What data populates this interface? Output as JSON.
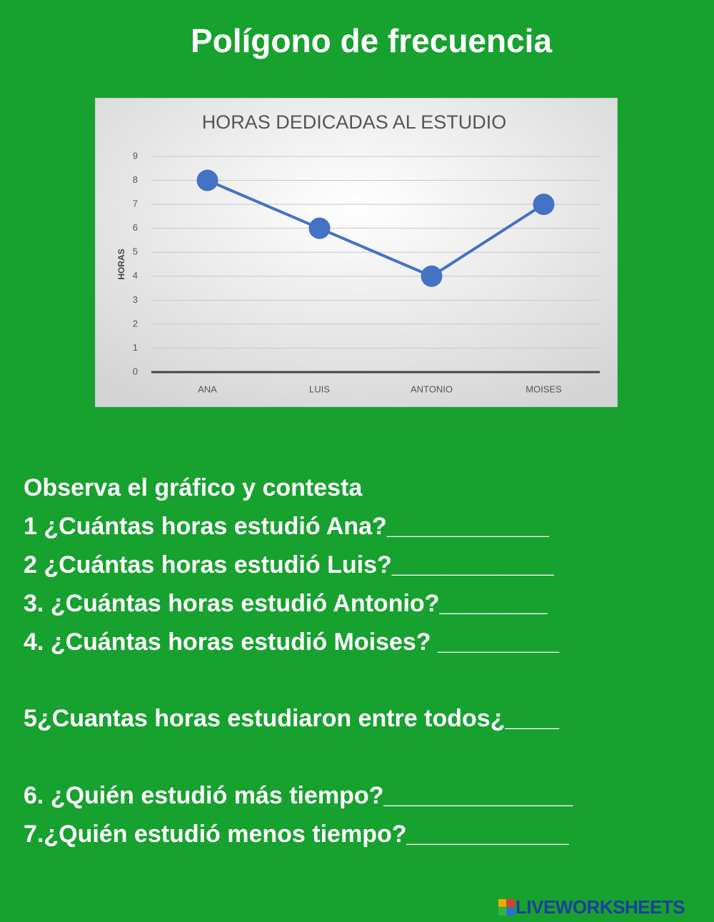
{
  "title": "Polígono de frecuencia",
  "chart_data": {
    "type": "line",
    "title": "HORAS DEDICADAS AL ESTUDIO",
    "y_label": "HORAS",
    "categories": [
      "ANA",
      "LUIS",
      "ANTONIO",
      "MOISES"
    ],
    "values": [
      8,
      6,
      4,
      7
    ],
    "color": "#4472c4",
    "ylim": [
      0,
      9
    ],
    "yticks": [
      0,
      1,
      2,
      3,
      4,
      5,
      6,
      7,
      8,
      9
    ],
    "grid": true
  },
  "questions": [
    "Observa el gráfico y contesta",
    "1 ¿Cuántas horas estudió Ana?____________",
    "2 ¿Cuántas horas estudió Luis?____________",
    "3. ¿Cuántas horas estudió Antonio?________",
    "4. ¿Cuántas horas estudió Moises? _________",
    "5¿Cuantas horas estudiaron entre todos¿____",
    "6. ¿Quién estudió más tiempo?______________",
    "7.¿Quién estudió menos tiempo?____________"
  ],
  "footer": "LIVEWORKSHEETS"
}
